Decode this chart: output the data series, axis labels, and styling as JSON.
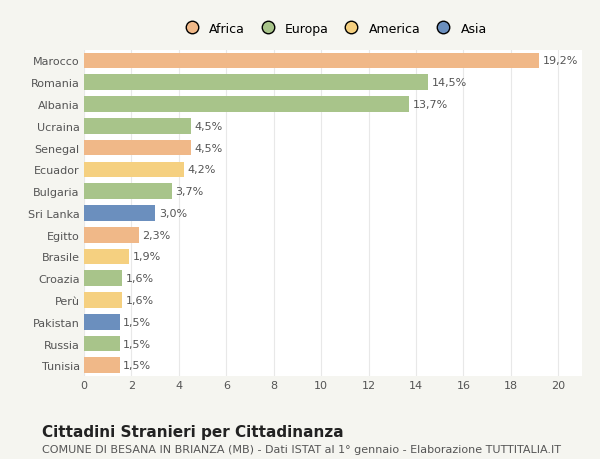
{
  "categories": [
    "Tunisia",
    "Russia",
    "Pakistan",
    "Perù",
    "Croazia",
    "Brasile",
    "Egitto",
    "Sri Lanka",
    "Bulgaria",
    "Ecuador",
    "Senegal",
    "Ucraina",
    "Albania",
    "Romania",
    "Marocco"
  ],
  "values": [
    1.5,
    1.5,
    1.5,
    1.6,
    1.6,
    1.9,
    2.3,
    3.0,
    3.7,
    4.2,
    4.5,
    4.5,
    13.7,
    14.5,
    19.2
  ],
  "labels": [
    "1,5%",
    "1,5%",
    "1,5%",
    "1,6%",
    "1,6%",
    "1,9%",
    "2,3%",
    "3,0%",
    "3,7%",
    "4,2%",
    "4,5%",
    "4,5%",
    "13,7%",
    "14,5%",
    "19,2%"
  ],
  "colors": [
    "#f0b888",
    "#a8c48a",
    "#6b8fbe",
    "#f5d080",
    "#a8c48a",
    "#f5d080",
    "#f0b888",
    "#6b8fbe",
    "#a8c48a",
    "#f5d080",
    "#f0b888",
    "#a8c48a",
    "#a8c48a",
    "#a8c48a",
    "#f0b888"
  ],
  "legend": [
    {
      "label": "Africa",
      "color": "#f0b888"
    },
    {
      "label": "Europa",
      "color": "#a8c48a"
    },
    {
      "label": "America",
      "color": "#f5d080"
    },
    {
      "label": "Asia",
      "color": "#6b8fbe"
    }
  ],
  "title": "Cittadini Stranieri per Cittadinanza",
  "subtitle": "COMUNE DI BESANA IN BRIANZA (MB) - Dati ISTAT al 1° gennaio - Elaborazione TUTTITALIA.IT",
  "xlim": [
    0,
    21
  ],
  "xticks": [
    0,
    2,
    4,
    6,
    8,
    10,
    12,
    14,
    16,
    18,
    20
  ],
  "background_color": "#f5f5f0",
  "plot_bg_color": "#ffffff",
  "grid_color": "#e8e8e8",
  "bar_height": 0.72,
  "title_fontsize": 11,
  "subtitle_fontsize": 8,
  "label_fontsize": 8,
  "tick_fontsize": 8,
  "legend_fontsize": 9
}
